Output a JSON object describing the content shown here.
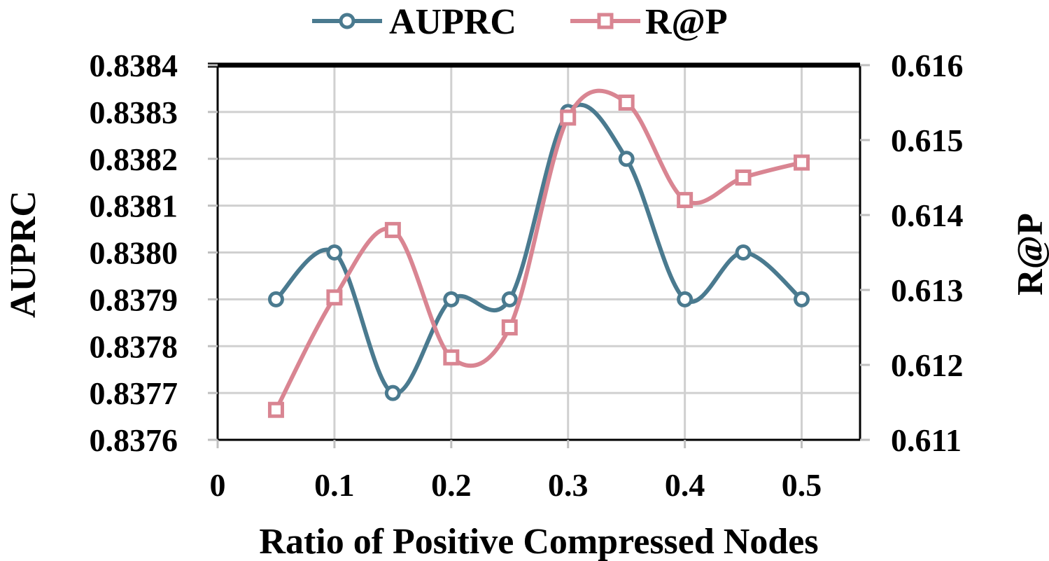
{
  "chart_data": {
    "type": "line",
    "title": "",
    "xlabel": "Ratio of Positive Compressed Nodes",
    "ylabel": "AUPRC",
    "y2label": "R@P",
    "xlim": [
      0,
      0.55
    ],
    "ylim": [
      0.8376,
      0.8384
    ],
    "y2lim": [
      0.611,
      0.616
    ],
    "x_ticks": [
      "0",
      "0.1",
      "0.2",
      "0.3",
      "0.4",
      "0.5"
    ],
    "x_tick_values": [
      0,
      0.1,
      0.2,
      0.3,
      0.4,
      0.5
    ],
    "y_ticks": [
      "0.8376",
      "0.8377",
      "0.8378",
      "0.8379",
      "0.8380",
      "0.8381",
      "0.8382",
      "0.8383",
      "0.8384"
    ],
    "y_tick_values": [
      0.8376,
      0.8377,
      0.8378,
      0.8379,
      0.838,
      0.8381,
      0.8382,
      0.8383,
      0.8384
    ],
    "y2_ticks": [
      "0.611",
      "0.612",
      "0.613",
      "0.614",
      "0.615",
      "0.616"
    ],
    "y2_tick_values": [
      0.611,
      0.612,
      0.613,
      0.614,
      0.615,
      0.616
    ],
    "grid": true,
    "legend_position": "top",
    "series": [
      {
        "name": "AUPRC",
        "axis": "left",
        "marker": "circle",
        "color": "#4a7a8f",
        "x": [
          0.05,
          0.1,
          0.15,
          0.2,
          0.25,
          0.3,
          0.35,
          0.4,
          0.45,
          0.5
        ],
        "values": [
          0.8379,
          0.838,
          0.8377,
          0.8379,
          0.8379,
          0.8383,
          0.8382,
          0.8379,
          0.838,
          0.8379
        ]
      },
      {
        "name": "R@P",
        "axis": "right",
        "marker": "square",
        "color": "#d98592",
        "x": [
          0.05,
          0.1,
          0.15,
          0.2,
          0.25,
          0.3,
          0.35,
          0.4,
          0.45,
          0.5
        ],
        "values": [
          0.6114,
          0.6129,
          0.6138,
          0.6121,
          0.6125,
          0.6153,
          0.6155,
          0.6142,
          0.6145,
          0.6147
        ]
      }
    ]
  }
}
